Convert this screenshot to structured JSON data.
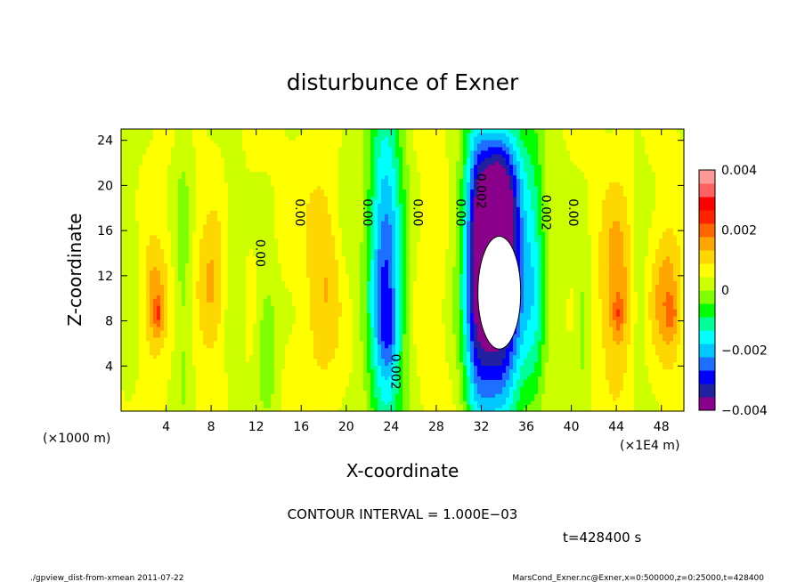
{
  "chart_data": {
    "type": "heatmap",
    "title": "disturbunce of Exner",
    "xlabel": "X-coordinate",
    "ylabel": "Z-coordinate",
    "x_unit_left": "(×1000 m)",
    "x_unit_right": "(×1E4 m)",
    "xlim": [
      0,
      50
    ],
    "ylim": [
      0,
      25
    ],
    "x_ticks": [
      4,
      8,
      12,
      16,
      20,
      24,
      28,
      32,
      36,
      40,
      44,
      48
    ],
    "x_tick_labels": [
      "4",
      "8",
      "12",
      "16",
      "20",
      "24",
      "28",
      "32",
      "36",
      "40",
      "44",
      "48"
    ],
    "y_ticks": [
      4,
      8,
      12,
      16,
      20,
      24
    ],
    "y_tick_labels": [
      "4",
      "8",
      "12",
      "16",
      "20",
      "24"
    ],
    "colorbar": {
      "min": -0.004,
      "max": 0.004,
      "tick_values": [
        0.004,
        0.002,
        0,
        -0.002,
        -0.004
      ],
      "tick_labels": [
        "0.004",
        "0.002",
        "0",
        "−0.002",
        "−0.004"
      ],
      "colors": [
        "#8b008b",
        "#2020a0",
        "#0000ff",
        "#1e6eff",
        "#00c8ff",
        "#00ffff",
        "#00ff99",
        "#00ff00",
        "#7fff00",
        "#ccff00",
        "#ffff00",
        "#ffd700",
        "#ffa500",
        "#ff6600",
        "#ff2400",
        "#ff0000",
        "#ff6060",
        "#ff9999"
      ]
    },
    "contour_labels": [
      {
        "x": 12,
        "z": 14,
        "text": "0.00"
      },
      {
        "x": 15.5,
        "z": 17.6,
        "text": "0.00"
      },
      {
        "x": 21.5,
        "z": 17.6,
        "text": "0.00"
      },
      {
        "x": 26,
        "z": 17.6,
        "text": "0.00"
      },
      {
        "x": 29.8,
        "z": 17.6,
        "text": "0.00"
      },
      {
        "x": 31.6,
        "z": 19.5,
        "text": "0.002"
      },
      {
        "x": 37.4,
        "z": 17.6,
        "text": "0.002"
      },
      {
        "x": 39.8,
        "z": 17.6,
        "text": "0.00"
      },
      {
        "x": 24,
        "z": 3.5,
        "text": "0.002"
      }
    ],
    "fields": {
      "background": 0.0005,
      "features": [
        {
          "x": 1,
          "z": 12,
          "sx": 0.9,
          "sz": 14,
          "a": -0.0003
        },
        {
          "x": 3,
          "z": 10,
          "sx": 1.1,
          "sz": 5,
          "a": 0.0012
        },
        {
          "x": 3.3,
          "z": 8.5,
          "sx": 0.4,
          "sz": 1.4,
          "a": 0.0009
        },
        {
          "x": 5.5,
          "z": 12,
          "sx": 0.8,
          "sz": 14,
          "a": -0.0007
        },
        {
          "x": 8,
          "z": 11,
          "sx": 1.3,
          "sz": 6,
          "a": 0.001
        },
        {
          "x": 10,
          "z": 12,
          "sx": 0.8,
          "sz": 14,
          "a": -0.0005
        },
        {
          "x": 13,
          "z": 6,
          "sx": 0.9,
          "sz": 6,
          "a": -0.001
        },
        {
          "x": 18,
          "z": 12,
          "sx": 1.8,
          "sz": 10,
          "a": 0.0008
        },
        {
          "x": 20,
          "z": 18,
          "sx": 0.9,
          "sz": 10,
          "a": -0.0004
        },
        {
          "x": 23.5,
          "z": 12,
          "sx": 1.6,
          "sz": 16,
          "a": -0.0032
        },
        {
          "x": 23.8,
          "z": 7,
          "sx": 0.8,
          "sz": 3,
          "a": -0.0006
        },
        {
          "x": 27.5,
          "z": 12,
          "sx": 1.2,
          "sz": 14,
          "a": 0.0003
        },
        {
          "x": 31.5,
          "z": 12,
          "sx": 1.1,
          "sz": 16,
          "a": -0.0018
        },
        {
          "x": 33.5,
          "z": 12,
          "sx": 2.4,
          "sz": 12,
          "a": -0.0055
        },
        {
          "x": 33.5,
          "z": 20,
          "sx": 2.2,
          "sz": 5,
          "a": -0.0015
        },
        {
          "x": 36.8,
          "z": 12,
          "sx": 1.0,
          "sz": 14,
          "a": -0.0012
        },
        {
          "x": 39,
          "z": 12,
          "sx": 0.9,
          "sz": 14,
          "a": -0.0003
        },
        {
          "x": 41,
          "z": 8,
          "sx": 0.7,
          "sz": 7,
          "a": -0.0007
        },
        {
          "x": 44,
          "z": 11,
          "sx": 1.5,
          "sz": 8,
          "a": 0.0012
        },
        {
          "x": 44.2,
          "z": 8.5,
          "sx": 0.45,
          "sz": 1.8,
          "a": 0.0008
        },
        {
          "x": 46,
          "z": 12,
          "sx": 0.7,
          "sz": 12,
          "a": -0.0005
        },
        {
          "x": 48.5,
          "z": 10,
          "sx": 1.3,
          "sz": 6,
          "a": 0.0012
        },
        {
          "x": 49,
          "z": 8.5,
          "sx": 0.5,
          "sz": 1.8,
          "a": 0.0006
        }
      ],
      "missing_region": {
        "x": 33.6,
        "z": 10.5,
        "rx": 1.9,
        "rz": 5.0
      }
    }
  },
  "contour_interval_text": "CONTOUR INTERVAL = 1.000E−03",
  "time_text": "t=428400 s",
  "footer_left": "./gpview_dist-from-xmean  2011-07-22",
  "footer_right": "MarsCond_Exner.nc@Exner,x=0:500000,z=0:25000,t=428400"
}
